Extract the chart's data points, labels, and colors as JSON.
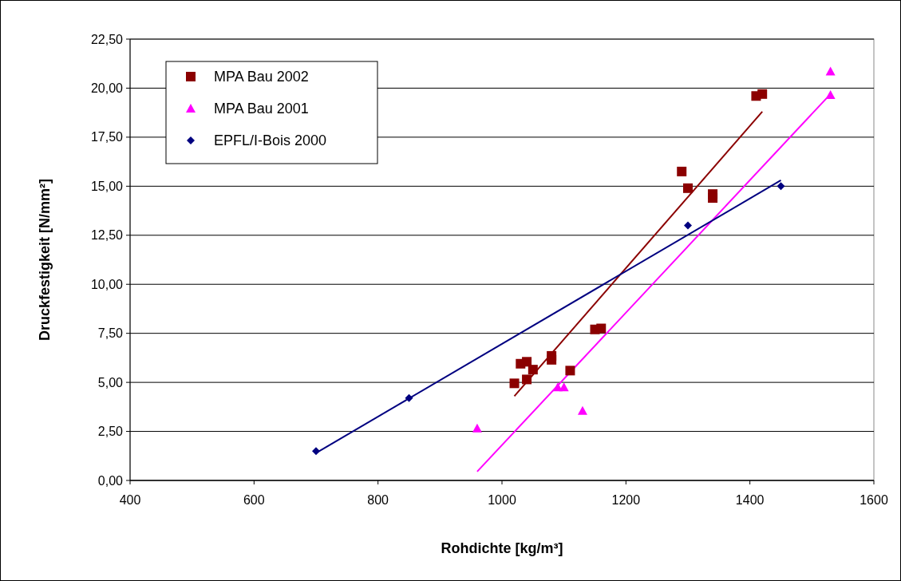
{
  "chart_data": {
    "type": "scatter",
    "xlabel": "Rohdichte [kg/m³]",
    "ylabel": "Druckfestigkeit [N/mm²]",
    "xlim": [
      400,
      1600
    ],
    "xticks": [
      400,
      600,
      800,
      1000,
      1200,
      1400,
      1600
    ],
    "ylim": [
      0,
      22.5
    ],
    "yticks": [
      {
        "value": 0,
        "label": "0,00"
      },
      {
        "value": 2.5,
        "label": "2,50"
      },
      {
        "value": 5,
        "label": "5,00"
      },
      {
        "value": 7.5,
        "label": "7,50"
      },
      {
        "value": 10,
        "label": "10,00"
      },
      {
        "value": 12.5,
        "label": "12,50"
      },
      {
        "value": 15,
        "label": "15,00"
      },
      {
        "value": 17.5,
        "label": "17,50"
      },
      {
        "value": 20,
        "label": "20,00"
      },
      {
        "value": 22.5,
        "label": "22,50"
      }
    ],
    "grid": "y",
    "legend": "top left",
    "series": [
      {
        "name": "MPA Bau 2002",
        "marker": "square",
        "color": "#8b0000",
        "x": [
          1020,
          1030,
          1040,
          1040,
          1050,
          1080,
          1080,
          1110,
          1150,
          1160,
          1290,
          1300,
          1340,
          1340,
          1410,
          1420
        ],
        "values": [
          4.95,
          5.95,
          6.05,
          5.15,
          5.65,
          6.35,
          6.15,
          5.6,
          7.7,
          7.75,
          15.75,
          14.9,
          14.6,
          14.4,
          19.6,
          19.7
        ]
      },
      {
        "name": "MPA Bau 2001",
        "marker": "triangle",
        "color": "#ff00ff",
        "x": [
          960,
          1090,
          1100,
          1130,
          1530,
          1530
        ],
        "values": [
          2.65,
          4.75,
          4.75,
          3.55,
          20.85,
          19.65
        ]
      },
      {
        "name": "EPFL/I-Bois 2000",
        "marker": "diamond",
        "color": "#000080",
        "x": [
          700,
          850,
          1300,
          1450
        ],
        "values": [
          1.5,
          4.2,
          13,
          15
        ]
      },
      {
        "type": "line",
        "color": "#8b0000",
        "x": [
          1020,
          1420
        ],
        "values": [
          4.3,
          18.8
        ]
      },
      {
        "type": "line",
        "color": "#ff00ff",
        "x": [
          960,
          1530
        ],
        "values": [
          0.45,
          19.7
        ]
      },
      {
        "type": "line",
        "color": "#000080",
        "x": [
          700,
          1450
        ],
        "values": [
          1.4,
          15.3
        ]
      }
    ]
  }
}
